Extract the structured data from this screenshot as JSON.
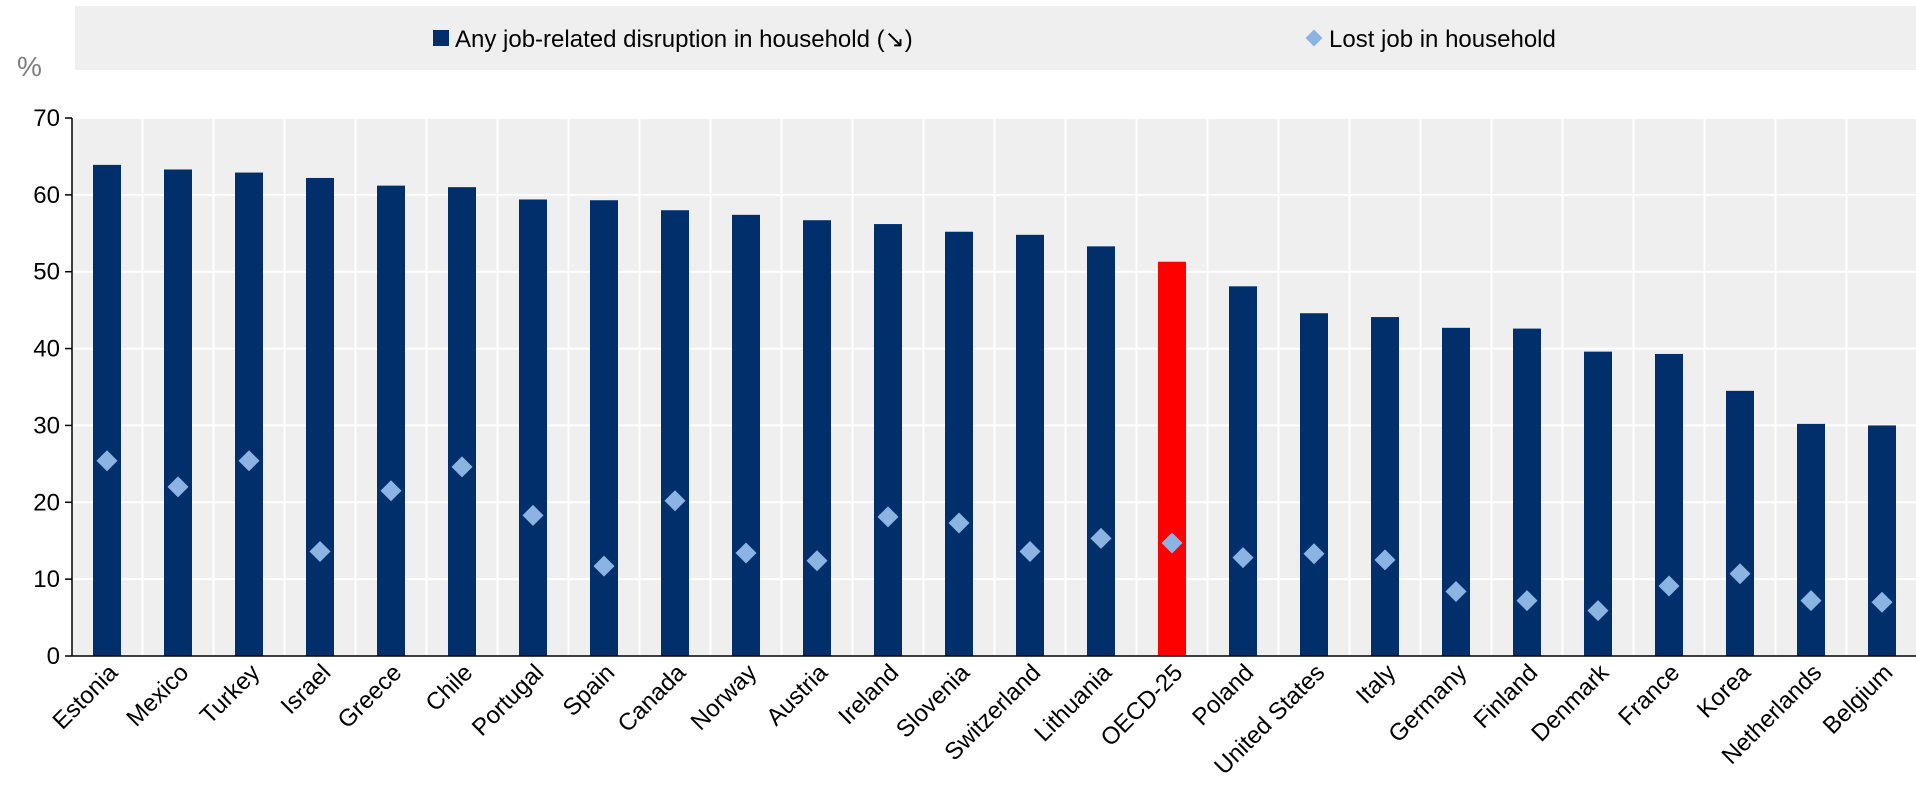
{
  "chart_data": {
    "type": "bar",
    "ylabel": "%",
    "ylim": [
      0,
      70
    ],
    "yticks": [
      0,
      10,
      20,
      30,
      40,
      50,
      60,
      70
    ],
    "grid": true,
    "legend_position": "top",
    "categories": [
      "Estonia",
      "Mexico",
      "Turkey",
      "Israel",
      "Greece",
      "Chile",
      "Portugal",
      "Spain",
      "Canada",
      "Norway",
      "Austria",
      "Ireland",
      "Slovenia",
      "Switzerland",
      "Lithuania",
      "OECD-25",
      "Poland",
      "United States",
      "Italy",
      "Germany",
      "Finland",
      "Denmark",
      "France",
      "Korea",
      "Netherlands",
      "Belgium"
    ],
    "highlight_category": "OECD-25",
    "series": [
      {
        "name": "Any job-related disruption in household (↘)",
        "type": "bar",
        "color": "#002f6c",
        "highlight_color": "#ff0000",
        "values": [
          63.9,
          63.3,
          62.9,
          62.2,
          61.2,
          61.0,
          59.4,
          59.3,
          58.0,
          57.4,
          56.7,
          56.2,
          55.2,
          54.8,
          53.3,
          51.3,
          48.1,
          44.6,
          44.1,
          42.7,
          42.6,
          39.6,
          39.3,
          34.5,
          30.2,
          30.0
        ]
      },
      {
        "name": "Lost job in household",
        "type": "scatter",
        "marker": "diamond",
        "color": "#8cb4e2",
        "values": [
          25.4,
          22.0,
          25.4,
          13.6,
          21.5,
          24.6,
          18.3,
          11.7,
          20.2,
          13.4,
          12.4,
          18.1,
          17.3,
          13.6,
          15.3,
          14.7,
          12.8,
          13.3,
          12.5,
          8.4,
          7.2,
          5.9,
          9.1,
          10.7,
          7.2,
          7.0
        ]
      }
    ]
  }
}
